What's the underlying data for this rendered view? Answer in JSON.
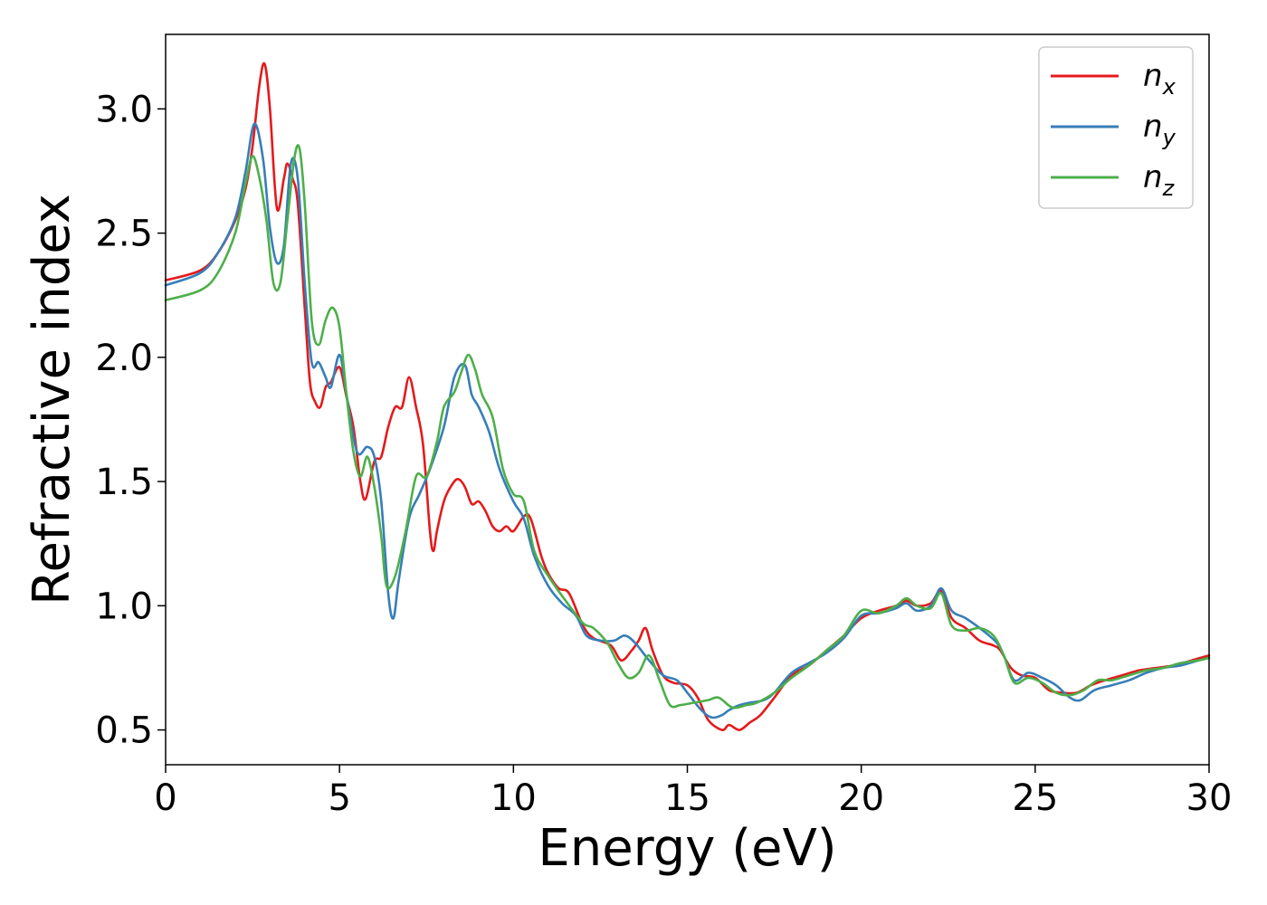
{
  "chart_data": {
    "type": "line",
    "title": "",
    "xlabel": "Energy (eV)",
    "ylabel": "Refractive index",
    "xlim": [
      0,
      30
    ],
    "ylim": [
      0.36,
      3.3
    ],
    "xticks": [
      0,
      5,
      10,
      15,
      20,
      25,
      30
    ],
    "xtick_labels": [
      "0",
      "5",
      "10",
      "15",
      "20",
      "25",
      "30"
    ],
    "yticks": [
      0.5,
      1.0,
      1.5,
      2.0,
      2.5,
      3.0
    ],
    "ytick_labels": [
      "0.5",
      "1.0",
      "1.5",
      "2.0",
      "2.5",
      "3.0"
    ],
    "grid": false,
    "legend_position": "top-right",
    "series": [
      {
        "name": "nx",
        "base": "n",
        "sub": "x",
        "color": "#e41a1c",
        "points": [
          [
            0,
            2.31
          ],
          [
            1,
            2.35
          ],
          [
            1.5,
            2.42
          ],
          [
            2,
            2.55
          ],
          [
            2.3,
            2.68
          ],
          [
            2.5,
            2.85
          ],
          [
            2.7,
            3.1
          ],
          [
            2.85,
            3.18
          ],
          [
            3,
            3.0
          ],
          [
            3.2,
            2.6
          ],
          [
            3.4,
            2.72
          ],
          [
            3.5,
            2.78
          ],
          [
            3.65,
            2.72
          ],
          [
            3.8,
            2.62
          ],
          [
            4,
            2.2
          ],
          [
            4.15,
            1.9
          ],
          [
            4.3,
            1.82
          ],
          [
            4.45,
            1.8
          ],
          [
            4.6,
            1.88
          ],
          [
            4.75,
            1.9
          ],
          [
            5,
            1.96
          ],
          [
            5.2,
            1.84
          ],
          [
            5.4,
            1.72
          ],
          [
            5.6,
            1.5
          ],
          [
            5.75,
            1.43
          ],
          [
            6,
            1.58
          ],
          [
            6.2,
            1.6
          ],
          [
            6.4,
            1.72
          ],
          [
            6.6,
            1.8
          ],
          [
            6.8,
            1.8
          ],
          [
            7,
            1.92
          ],
          [
            7.2,
            1.8
          ],
          [
            7.4,
            1.65
          ],
          [
            7.6,
            1.3
          ],
          [
            7.7,
            1.22
          ],
          [
            7.8,
            1.3
          ],
          [
            8,
            1.42
          ],
          [
            8.2,
            1.48
          ],
          [
            8.4,
            1.51
          ],
          [
            8.6,
            1.48
          ],
          [
            8.8,
            1.41
          ],
          [
            9,
            1.42
          ],
          [
            9.2,
            1.38
          ],
          [
            9.4,
            1.32
          ],
          [
            9.6,
            1.3
          ],
          [
            9.8,
            1.32
          ],
          [
            10,
            1.3
          ],
          [
            10.3,
            1.36
          ],
          [
            10.5,
            1.35
          ],
          [
            10.8,
            1.2
          ],
          [
            11,
            1.13
          ],
          [
            11.3,
            1.07
          ],
          [
            11.6,
            1.05
          ],
          [
            12,
            0.92
          ],
          [
            12.3,
            0.87
          ],
          [
            12.8,
            0.84
          ],
          [
            13.1,
            0.78
          ],
          [
            13.4,
            0.82
          ],
          [
            13.6,
            0.86
          ],
          [
            13.8,
            0.91
          ],
          [
            14,
            0.82
          ],
          [
            14.3,
            0.72
          ],
          [
            14.6,
            0.69
          ],
          [
            15,
            0.68
          ],
          [
            15.3,
            0.63
          ],
          [
            15.6,
            0.54
          ],
          [
            16,
            0.5
          ],
          [
            16.2,
            0.52
          ],
          [
            16.5,
            0.5
          ],
          [
            16.8,
            0.53
          ],
          [
            17.1,
            0.56
          ],
          [
            17.5,
            0.63
          ],
          [
            18,
            0.72
          ],
          [
            18.5,
            0.76
          ],
          [
            19,
            0.82
          ],
          [
            19.5,
            0.88
          ],
          [
            20,
            0.95
          ],
          [
            20.5,
            0.98
          ],
          [
            21,
            1.0
          ],
          [
            21.3,
            1.02
          ],
          [
            21.6,
            1.0
          ],
          [
            22,
            1.01
          ],
          [
            22.3,
            1.06
          ],
          [
            22.6,
            0.95
          ],
          [
            23,
            0.91
          ],
          [
            23.4,
            0.86
          ],
          [
            23.8,
            0.84
          ],
          [
            24,
            0.82
          ],
          [
            24.3,
            0.75
          ],
          [
            24.6,
            0.72
          ],
          [
            25,
            0.71
          ],
          [
            25.4,
            0.66
          ],
          [
            25.8,
            0.65
          ],
          [
            26.2,
            0.65
          ],
          [
            26.6,
            0.68
          ],
          [
            27,
            0.7
          ],
          [
            27.5,
            0.72
          ],
          [
            28,
            0.74
          ],
          [
            28.5,
            0.75
          ],
          [
            29,
            0.76
          ],
          [
            29.5,
            0.78
          ],
          [
            30,
            0.8
          ]
        ]
      },
      {
        "name": "ny",
        "base": "n",
        "sub": "y",
        "color": "#377eb8",
        "points": [
          [
            0,
            2.29
          ],
          [
            1,
            2.34
          ],
          [
            1.5,
            2.42
          ],
          [
            2,
            2.56
          ],
          [
            2.3,
            2.75
          ],
          [
            2.55,
            2.94
          ],
          [
            2.8,
            2.8
          ],
          [
            3,
            2.52
          ],
          [
            3.2,
            2.38
          ],
          [
            3.4,
            2.45
          ],
          [
            3.6,
            2.78
          ],
          [
            3.8,
            2.72
          ],
          [
            4,
            2.3
          ],
          [
            4.2,
            1.98
          ],
          [
            4.4,
            1.98
          ],
          [
            4.6,
            1.92
          ],
          [
            4.75,
            1.88
          ],
          [
            5,
            2.01
          ],
          [
            5.2,
            1.85
          ],
          [
            5.5,
            1.62
          ],
          [
            5.8,
            1.64
          ],
          [
            6,
            1.6
          ],
          [
            6.2,
            1.42
          ],
          [
            6.4,
            1.05
          ],
          [
            6.55,
            0.95
          ],
          [
            6.7,
            1.1
          ],
          [
            7,
            1.35
          ],
          [
            7.3,
            1.45
          ],
          [
            7.6,
            1.55
          ],
          [
            8,
            1.72
          ],
          [
            8.3,
            1.92
          ],
          [
            8.6,
            1.97
          ],
          [
            8.8,
            1.85
          ],
          [
            9,
            1.8
          ],
          [
            9.3,
            1.7
          ],
          [
            9.6,
            1.55
          ],
          [
            10,
            1.42
          ],
          [
            10.3,
            1.35
          ],
          [
            10.6,
            1.2
          ],
          [
            11,
            1.08
          ],
          [
            11.4,
            1.01
          ],
          [
            11.8,
            0.96
          ],
          [
            12.1,
            0.88
          ],
          [
            12.5,
            0.86
          ],
          [
            12.9,
            0.86
          ],
          [
            13.2,
            0.88
          ],
          [
            13.5,
            0.85
          ],
          [
            13.9,
            0.78
          ],
          [
            14.3,
            0.72
          ],
          [
            14.7,
            0.7
          ],
          [
            15,
            0.65
          ],
          [
            15.4,
            0.58
          ],
          [
            15.7,
            0.55
          ],
          [
            16,
            0.56
          ],
          [
            16.2,
            0.58
          ],
          [
            16.5,
            0.6
          ],
          [
            16.8,
            0.61
          ],
          [
            17.2,
            0.62
          ],
          [
            17.5,
            0.65
          ],
          [
            18,
            0.73
          ],
          [
            18.5,
            0.77
          ],
          [
            19,
            0.81
          ],
          [
            19.5,
            0.87
          ],
          [
            20,
            0.96
          ],
          [
            20.5,
            0.97
          ],
          [
            21,
            0.99
          ],
          [
            21.3,
            1.01
          ],
          [
            21.6,
            0.98
          ],
          [
            22,
            1.0
          ],
          [
            22.3,
            1.07
          ],
          [
            22.6,
            0.98
          ],
          [
            23,
            0.95
          ],
          [
            23.5,
            0.9
          ],
          [
            23.9,
            0.85
          ],
          [
            24.1,
            0.8
          ],
          [
            24.4,
            0.7
          ],
          [
            24.8,
            0.73
          ],
          [
            25.2,
            0.71
          ],
          [
            25.6,
            0.68
          ],
          [
            26,
            0.63
          ],
          [
            26.3,
            0.62
          ],
          [
            26.7,
            0.66
          ],
          [
            27.2,
            0.68
          ],
          [
            27.7,
            0.7
          ],
          [
            28.2,
            0.73
          ],
          [
            28.7,
            0.75
          ],
          [
            29.2,
            0.76
          ],
          [
            29.7,
            0.78
          ],
          [
            30,
            0.79
          ]
        ]
      },
      {
        "name": "nz",
        "base": "n",
        "sub": "z",
        "color": "#4daf4a",
        "points": [
          [
            0,
            2.23
          ],
          [
            1,
            2.27
          ],
          [
            1.5,
            2.34
          ],
          [
            2,
            2.5
          ],
          [
            2.3,
            2.7
          ],
          [
            2.5,
            2.81
          ],
          [
            2.7,
            2.72
          ],
          [
            2.9,
            2.55
          ],
          [
            3.1,
            2.3
          ],
          [
            3.3,
            2.3
          ],
          [
            3.5,
            2.55
          ],
          [
            3.7,
            2.8
          ],
          [
            3.85,
            2.84
          ],
          [
            4,
            2.62
          ],
          [
            4.2,
            2.15
          ],
          [
            4.4,
            2.05
          ],
          [
            4.6,
            2.15
          ],
          [
            4.8,
            2.2
          ],
          [
            5,
            2.12
          ],
          [
            5.2,
            1.85
          ],
          [
            5.4,
            1.62
          ],
          [
            5.6,
            1.52
          ],
          [
            5.8,
            1.6
          ],
          [
            6,
            1.48
          ],
          [
            6.2,
            1.28
          ],
          [
            6.35,
            1.08
          ],
          [
            6.6,
            1.12
          ],
          [
            6.9,
            1.3
          ],
          [
            7.2,
            1.52
          ],
          [
            7.5,
            1.52
          ],
          [
            7.8,
            1.66
          ],
          [
            8,
            1.8
          ],
          [
            8.3,
            1.86
          ],
          [
            8.5,
            1.94
          ],
          [
            8.7,
            2.01
          ],
          [
            8.9,
            1.95
          ],
          [
            9.1,
            1.85
          ],
          [
            9.4,
            1.76
          ],
          [
            9.7,
            1.55
          ],
          [
            10,
            1.45
          ],
          [
            10.3,
            1.42
          ],
          [
            10.6,
            1.22
          ],
          [
            11,
            1.12
          ],
          [
            11.5,
            1.02
          ],
          [
            12,
            0.93
          ],
          [
            12.3,
            0.91
          ],
          [
            12.7,
            0.85
          ],
          [
            13,
            0.77
          ],
          [
            13.3,
            0.71
          ],
          [
            13.6,
            0.73
          ],
          [
            13.9,
            0.8
          ],
          [
            14.2,
            0.7
          ],
          [
            14.5,
            0.6
          ],
          [
            14.8,
            0.6
          ],
          [
            15.2,
            0.61
          ],
          [
            15.6,
            0.62
          ],
          [
            15.9,
            0.63
          ],
          [
            16.3,
            0.59
          ],
          [
            16.7,
            0.6
          ],
          [
            17,
            0.61
          ],
          [
            17.5,
            0.65
          ],
          [
            18,
            0.71
          ],
          [
            18.5,
            0.76
          ],
          [
            19,
            0.82
          ],
          [
            19.5,
            0.88
          ],
          [
            20,
            0.98
          ],
          [
            20.5,
            0.97
          ],
          [
            21,
            1.0
          ],
          [
            21.3,
            1.03
          ],
          [
            21.6,
            1.0
          ],
          [
            22,
            0.99
          ],
          [
            22.3,
            1.05
          ],
          [
            22.6,
            0.92
          ],
          [
            23,
            0.9
          ],
          [
            23.4,
            0.91
          ],
          [
            23.8,
            0.88
          ],
          [
            24.1,
            0.8
          ],
          [
            24.4,
            0.69
          ],
          [
            24.8,
            0.71
          ],
          [
            25.2,
            0.69
          ],
          [
            25.6,
            0.65
          ],
          [
            26,
            0.64
          ],
          [
            26.4,
            0.66
          ],
          [
            26.8,
            0.7
          ],
          [
            27.2,
            0.7
          ],
          [
            27.7,
            0.72
          ],
          [
            28.2,
            0.74
          ],
          [
            28.7,
            0.75
          ],
          [
            29.2,
            0.77
          ],
          [
            29.7,
            0.78
          ],
          [
            30,
            0.79
          ]
        ]
      }
    ]
  }
}
